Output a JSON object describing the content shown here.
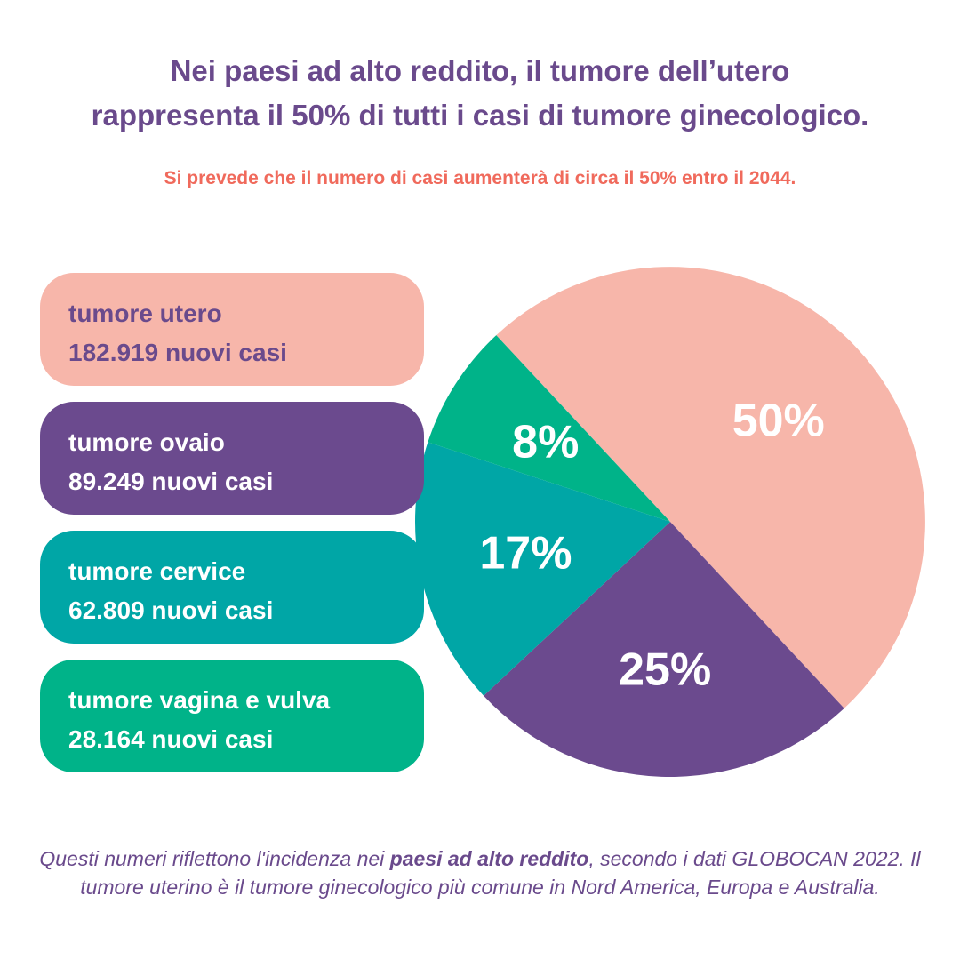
{
  "title": {
    "line1": "Nei paesi ad alto reddito, il tumore dell’utero",
    "line2": "rappresenta il 50% di tutti i casi di tumore ginecologico."
  },
  "subtitle": "Si prevede che il numero di casi aumenterà di circa il 50% entro il 2044.",
  "colors": {
    "utero": "#f7b6aa",
    "ovaio": "#6b4a8e",
    "cervice": "#00a6a6",
    "vagina_vulva": "#00b389",
    "title": "#6a4a8c",
    "subtitle": "#f06a5c"
  },
  "legend": [
    {
      "name": "tumore utero",
      "cases": "182.919 nuovi casi",
      "color": "#f7b6aa",
      "text_color": "#6a4a8c"
    },
    {
      "name": "tumore ovaio",
      "cases": "89.249 nuovi casi",
      "color": "#6b4a8e",
      "text_color": "#ffffff"
    },
    {
      "name": "tumore cervice",
      "cases": "62.809 nuovi casi",
      "color": "#00a6a6",
      "text_color": "#ffffff"
    },
    {
      "name": "tumore vagina e vulva",
      "cases": "28.164 nuovi casi",
      "color": "#00b389",
      "text_color": "#ffffff"
    }
  ],
  "chart_data": {
    "type": "pie",
    "labels": [
      "tumore utero",
      "tumore ovaio",
      "tumore cervice",
      "tumore vagina e vulva"
    ],
    "values": [
      50,
      25,
      17,
      8
    ],
    "cases": [
      182919,
      89249,
      62809,
      28164
    ],
    "value_labels": [
      "50%",
      "25%",
      "17%",
      "8%"
    ],
    "colors": [
      "#f7b6aa",
      "#6b4a8e",
      "#00a6a6",
      "#00b389"
    ]
  },
  "footer": {
    "before": "Questi numeri riflettono l'incidenza nei ",
    "bold": "paesi ad alto reddito",
    "after": ", secondo i dati GLOBOCAN 2022. Il tumore uterino è il tumore ginecologico più comune in Nord America, Europa e Australia."
  }
}
